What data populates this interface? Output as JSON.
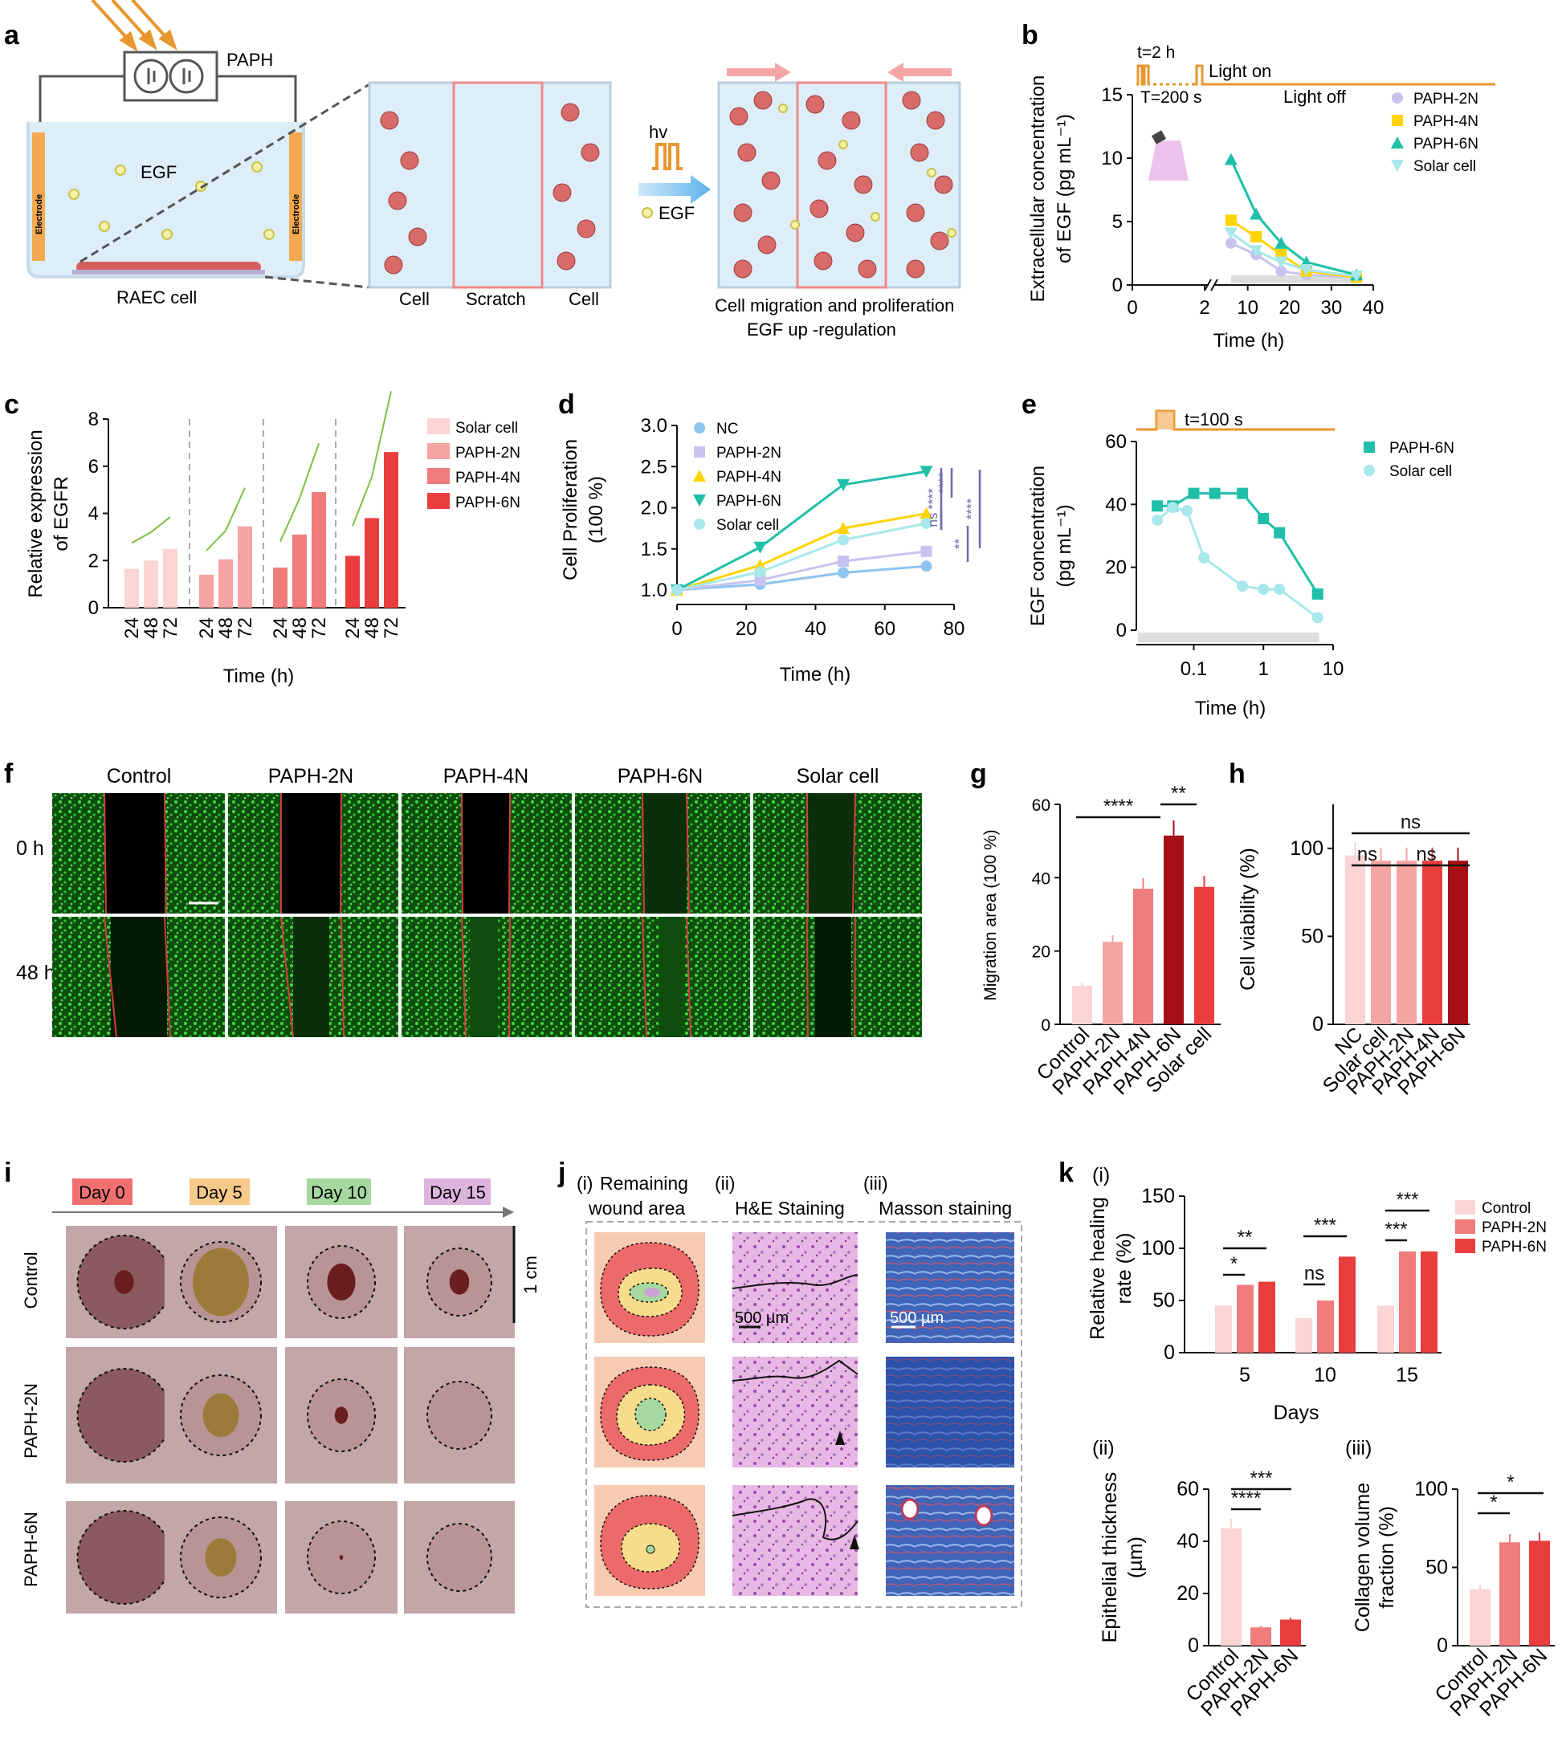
{
  "panels": {
    "a": {
      "letter": "a",
      "paph_label": "PAPH",
      "electrode_label": "Electrode",
      "egf_label": "EGF",
      "raec_label": "RAEC cell",
      "scratch_labels": [
        "Cell",
        "Scratch",
        "Cell"
      ],
      "hv_label": "hv",
      "egf_legend": "EGF",
      "caption_line1": "Cell migration and proliferation",
      "caption_line2": "EGF up -regulation"
    },
    "b": {
      "letter": "b",
      "pulse_t": "t=2 h",
      "pulse_T": "T=200 s",
      "light_on": "Light on",
      "light_off": "Light off",
      "ylabel_line1": "Extracellular concentration",
      "ylabel_line2": "of EGF (pg mL⁻¹)",
      "xlabel": "Time (h)"
    },
    "c": {
      "letter": "c",
      "xlabel": "Time (h)",
      "ylabel_line1": "Relative expression",
      "ylabel_line2": "of EGFR"
    },
    "d": {
      "letter": "d",
      "xlabel": "Time (h)",
      "ylabel_line1": "Cell Proliferation",
      "ylabel_line2": "(100 %)"
    },
    "e": {
      "letter": "e",
      "pulse_t": "t=100 s",
      "xlabel": "Time (h)",
      "ylabel_line1": "EGF concentration",
      "ylabel_line2": "(pg mL⁻¹)"
    },
    "f": {
      "letter": "f",
      "columns": [
        "Control",
        "PAPH-2N",
        "PAPH-4N",
        "PAPH-6N",
        "Solar cell"
      ],
      "rows": [
        "0 h",
        "48 h"
      ]
    },
    "g": {
      "letter": "g",
      "ylabel": "Migration area (100 %)"
    },
    "h": {
      "letter": "h",
      "ylabel": "Cell viability (%)"
    },
    "i": {
      "letter": "i",
      "days": [
        "Day 0",
        "Day 5",
        "Day 10",
        "Day 15"
      ],
      "day_colors": [
        "#f07070",
        "#f7c98a",
        "#a6d9a0",
        "#ddb4dd"
      ],
      "rows": [
        "Control",
        "PAPH-2N",
        "PAPH-6N"
      ],
      "scale": "1 cm"
    },
    "j": {
      "letter": "j",
      "col1_roman": "(i)",
      "col1_line1": "Remaining",
      "col1_line2": "wound area",
      "col2_title": "(ii)",
      "col2_sub": "H&E Staining",
      "col3_title": "(iii)",
      "col3_sub": "Masson staining",
      "scale1": "500 µm",
      "scale2": "500 µm"
    },
    "k": {
      "letter": "k",
      "sub_i": "(i)",
      "sub_ii": "(ii)",
      "sub_iii": "(iii)",
      "ylabel_i_line1": "Relative healing",
      "ylabel_i_line2": "rate (%)",
      "xlabel_i": "Days",
      "ylabel_ii_line1": "Epithelial thickness",
      "ylabel_ii_line2": "(µm)",
      "ylabel_iii_line1": "Collagen volume",
      "ylabel_iii_line2": "fraction (%)"
    }
  },
  "colors": {
    "paph2n": "#c6c4ef",
    "paph4n": "#ffd400",
    "paph6n": "#1fbfa9",
    "solar": "#a8e8ea",
    "nc": "#8fc4f0",
    "orange": "#e8962e",
    "bar1": "#fbd4d4",
    "bar2": "#f6a3a3",
    "bar3": "#f07c7c",
    "bar4": "#ea3d3d",
    "bar5": "#a50f15",
    "sig": "#6a6aaa"
  },
  "chart_data": [
    {
      "id": "b",
      "type": "line",
      "title": "",
      "xlabel": "Time (h)",
      "ylabel": "Extracellular concentration of EGF (pg mL⁻¹)",
      "xlim": [
        0,
        40
      ],
      "ylim": [
        0,
        15
      ],
      "xticks": [
        "0",
        "2",
        "10",
        "20",
        "30",
        "40"
      ],
      "yticks": [
        "0",
        "5",
        "10",
        "15"
      ],
      "series": [
        {
          "name": "PAPH-2N",
          "x": [
            6,
            12,
            18,
            24,
            36
          ],
          "values": [
            3.3,
            2.4,
            1.1,
            0.8,
            0.6
          ]
        },
        {
          "name": "PAPH-4N",
          "x": [
            6,
            12,
            18,
            24,
            36
          ],
          "values": [
            5.1,
            3.8,
            2.4,
            1.1,
            0.6
          ]
        },
        {
          "name": "PAPH-6N",
          "x": [
            6,
            12,
            18,
            24,
            36
          ],
          "values": [
            9.9,
            5.6,
            3.3,
            1.8,
            0.8
          ]
        },
        {
          "name": "Solar cell",
          "x": [
            6,
            12,
            18,
            24,
            36
          ],
          "values": [
            4.1,
            2.7,
            1.8,
            1.2,
            0.7
          ]
        }
      ]
    },
    {
      "id": "c",
      "type": "bar",
      "xlabel": "Time (h)",
      "ylabel": "Relative expression of EGFR",
      "ylim": [
        0,
        8
      ],
      "yticks": [
        "0",
        "2",
        "4",
        "6",
        "8"
      ],
      "categories": [
        "24",
        "48",
        "72"
      ],
      "series": [
        {
          "name": "Solar cell",
          "values": [
            1.65,
            2.0,
            2.5
          ]
        },
        {
          "name": "PAPH-2N",
          "values": [
            1.4,
            2.05,
            3.45
          ]
        },
        {
          "name": "PAPH-4N",
          "values": [
            1.7,
            3.1,
            4.9
          ]
        },
        {
          "name": "PAPH-6N",
          "values": [
            2.2,
            3.8,
            6.6
          ]
        }
      ]
    },
    {
      "id": "d",
      "type": "line",
      "xlabel": "Time (h)",
      "ylabel": "Cell Proliferation (100 %)",
      "xlim": [
        0,
        80
      ],
      "ylim": [
        1.0,
        3.0
      ],
      "xticks": [
        "0",
        "20",
        "40",
        "60",
        "80"
      ],
      "yticks": [
        "1.0",
        "1.5",
        "2.0",
        "2.5",
        "3.0"
      ],
      "series": [
        {
          "name": "NC",
          "x": [
            0,
            24,
            48,
            72
          ],
          "values": [
            1.0,
            1.07,
            1.21,
            1.29
          ]
        },
        {
          "name": "PAPH-2N",
          "x": [
            0,
            24,
            48,
            72
          ],
          "values": [
            1.0,
            1.12,
            1.35,
            1.47
          ]
        },
        {
          "name": "PAPH-4N",
          "x": [
            0,
            24,
            48,
            72
          ],
          "values": [
            1.0,
            1.3,
            1.75,
            1.93
          ]
        },
        {
          "name": "PAPH-6N",
          "x": [
            0,
            24,
            48,
            72
          ],
          "values": [
            1.0,
            1.52,
            2.28,
            2.44
          ]
        },
        {
          "name": "Solar cell",
          "x": [
            0,
            24,
            48,
            72
          ],
          "values": [
            1.0,
            1.22,
            1.61,
            1.81
          ]
        }
      ],
      "significance": [
        "****",
        "****",
        "ns",
        "****",
        "**"
      ]
    },
    {
      "id": "e",
      "type": "line",
      "xscale": "log",
      "xlabel": "Time (h)",
      "ylabel": "EGF concentration (pg mL⁻¹)",
      "ylim": [
        0,
        60
      ],
      "xticks": [
        "0.1",
        "1",
        "10"
      ],
      "yticks": [
        "0",
        "20",
        "40",
        "60"
      ],
      "series": [
        {
          "name": "PAPH-6N",
          "x": [
            0.03,
            0.05,
            0.1,
            0.2,
            0.5,
            1,
            1.7,
            6
          ],
          "values": [
            39.5,
            39.5,
            43.5,
            43.5,
            43.5,
            35.5,
            31,
            11.5
          ]
        },
        {
          "name": "Solar cell",
          "x": [
            0.03,
            0.05,
            0.08,
            0.14,
            0.5,
            1,
            1.7,
            6
          ],
          "values": [
            35,
            39,
            38,
            23,
            14,
            13,
            13,
            4
          ]
        }
      ]
    },
    {
      "id": "g",
      "type": "bar",
      "ylabel": "Migration area (100 %)",
      "ylim": [
        0,
        60
      ],
      "yticks": [
        "0",
        "20",
        "40",
        "60"
      ],
      "categories": [
        "Control",
        "PAPH-2N",
        "PAPH-4N",
        "PAPH-6N",
        "Solar cell"
      ],
      "values": [
        10.5,
        22.5,
        37,
        51.5,
        37.5
      ],
      "significance": [
        "****",
        "**"
      ]
    },
    {
      "id": "h",
      "type": "bar",
      "ylabel": "Cell viability (%)",
      "ylim": [
        0,
        125
      ],
      "yticks": [
        "0",
        "50",
        "100"
      ],
      "categories": [
        "NC",
        "Solar cell",
        "PAPH-2N",
        "PAPH-4N",
        "PAPH-6N"
      ],
      "values": [
        96,
        93,
        93,
        93,
        93
      ],
      "significance": [
        "ns",
        "ns",
        "ns"
      ]
    },
    {
      "id": "k_i",
      "type": "bar",
      "xlabel": "Days",
      "ylabel": "Relative healing rate (%)",
      "ylim": [
        0,
        150
      ],
      "yticks": [
        "0",
        "50",
        "100",
        "150"
      ],
      "categories": [
        "5",
        "10",
        "15"
      ],
      "legend": [
        "Control",
        "PAPH-2N",
        "PAPH-6N"
      ],
      "series": [
        {
          "name": "Control",
          "values": [
            45,
            33,
            45
          ]
        },
        {
          "name": "PAPH-2N",
          "values": [
            65,
            50,
            97
          ]
        },
        {
          "name": "PAPH-6N",
          "values": [
            68,
            92,
            97
          ]
        }
      ],
      "significance": [
        "**",
        "*",
        "***",
        "ns",
        "***",
        "***"
      ]
    },
    {
      "id": "k_ii",
      "type": "bar",
      "ylabel": "Epithelial thickness (µm)",
      "ylim": [
        0,
        60
      ],
      "yticks": [
        "0",
        "20",
        "40",
        "60"
      ],
      "categories": [
        "Control",
        "PAPH-2N",
        "PAPH-6N"
      ],
      "values": [
        45,
        7,
        10
      ],
      "significance": [
        "***",
        "****"
      ]
    },
    {
      "id": "k_iii",
      "type": "bar",
      "ylabel": "Collagen volume fraction (%)",
      "ylim": [
        0,
        100
      ],
      "yticks": [
        "0",
        "50",
        "100"
      ],
      "categories": [
        "Control",
        "PAPH-2N",
        "PAPH-6N"
      ],
      "values": [
        36,
        66,
        67
      ],
      "significance": [
        "*",
        "*"
      ]
    }
  ]
}
